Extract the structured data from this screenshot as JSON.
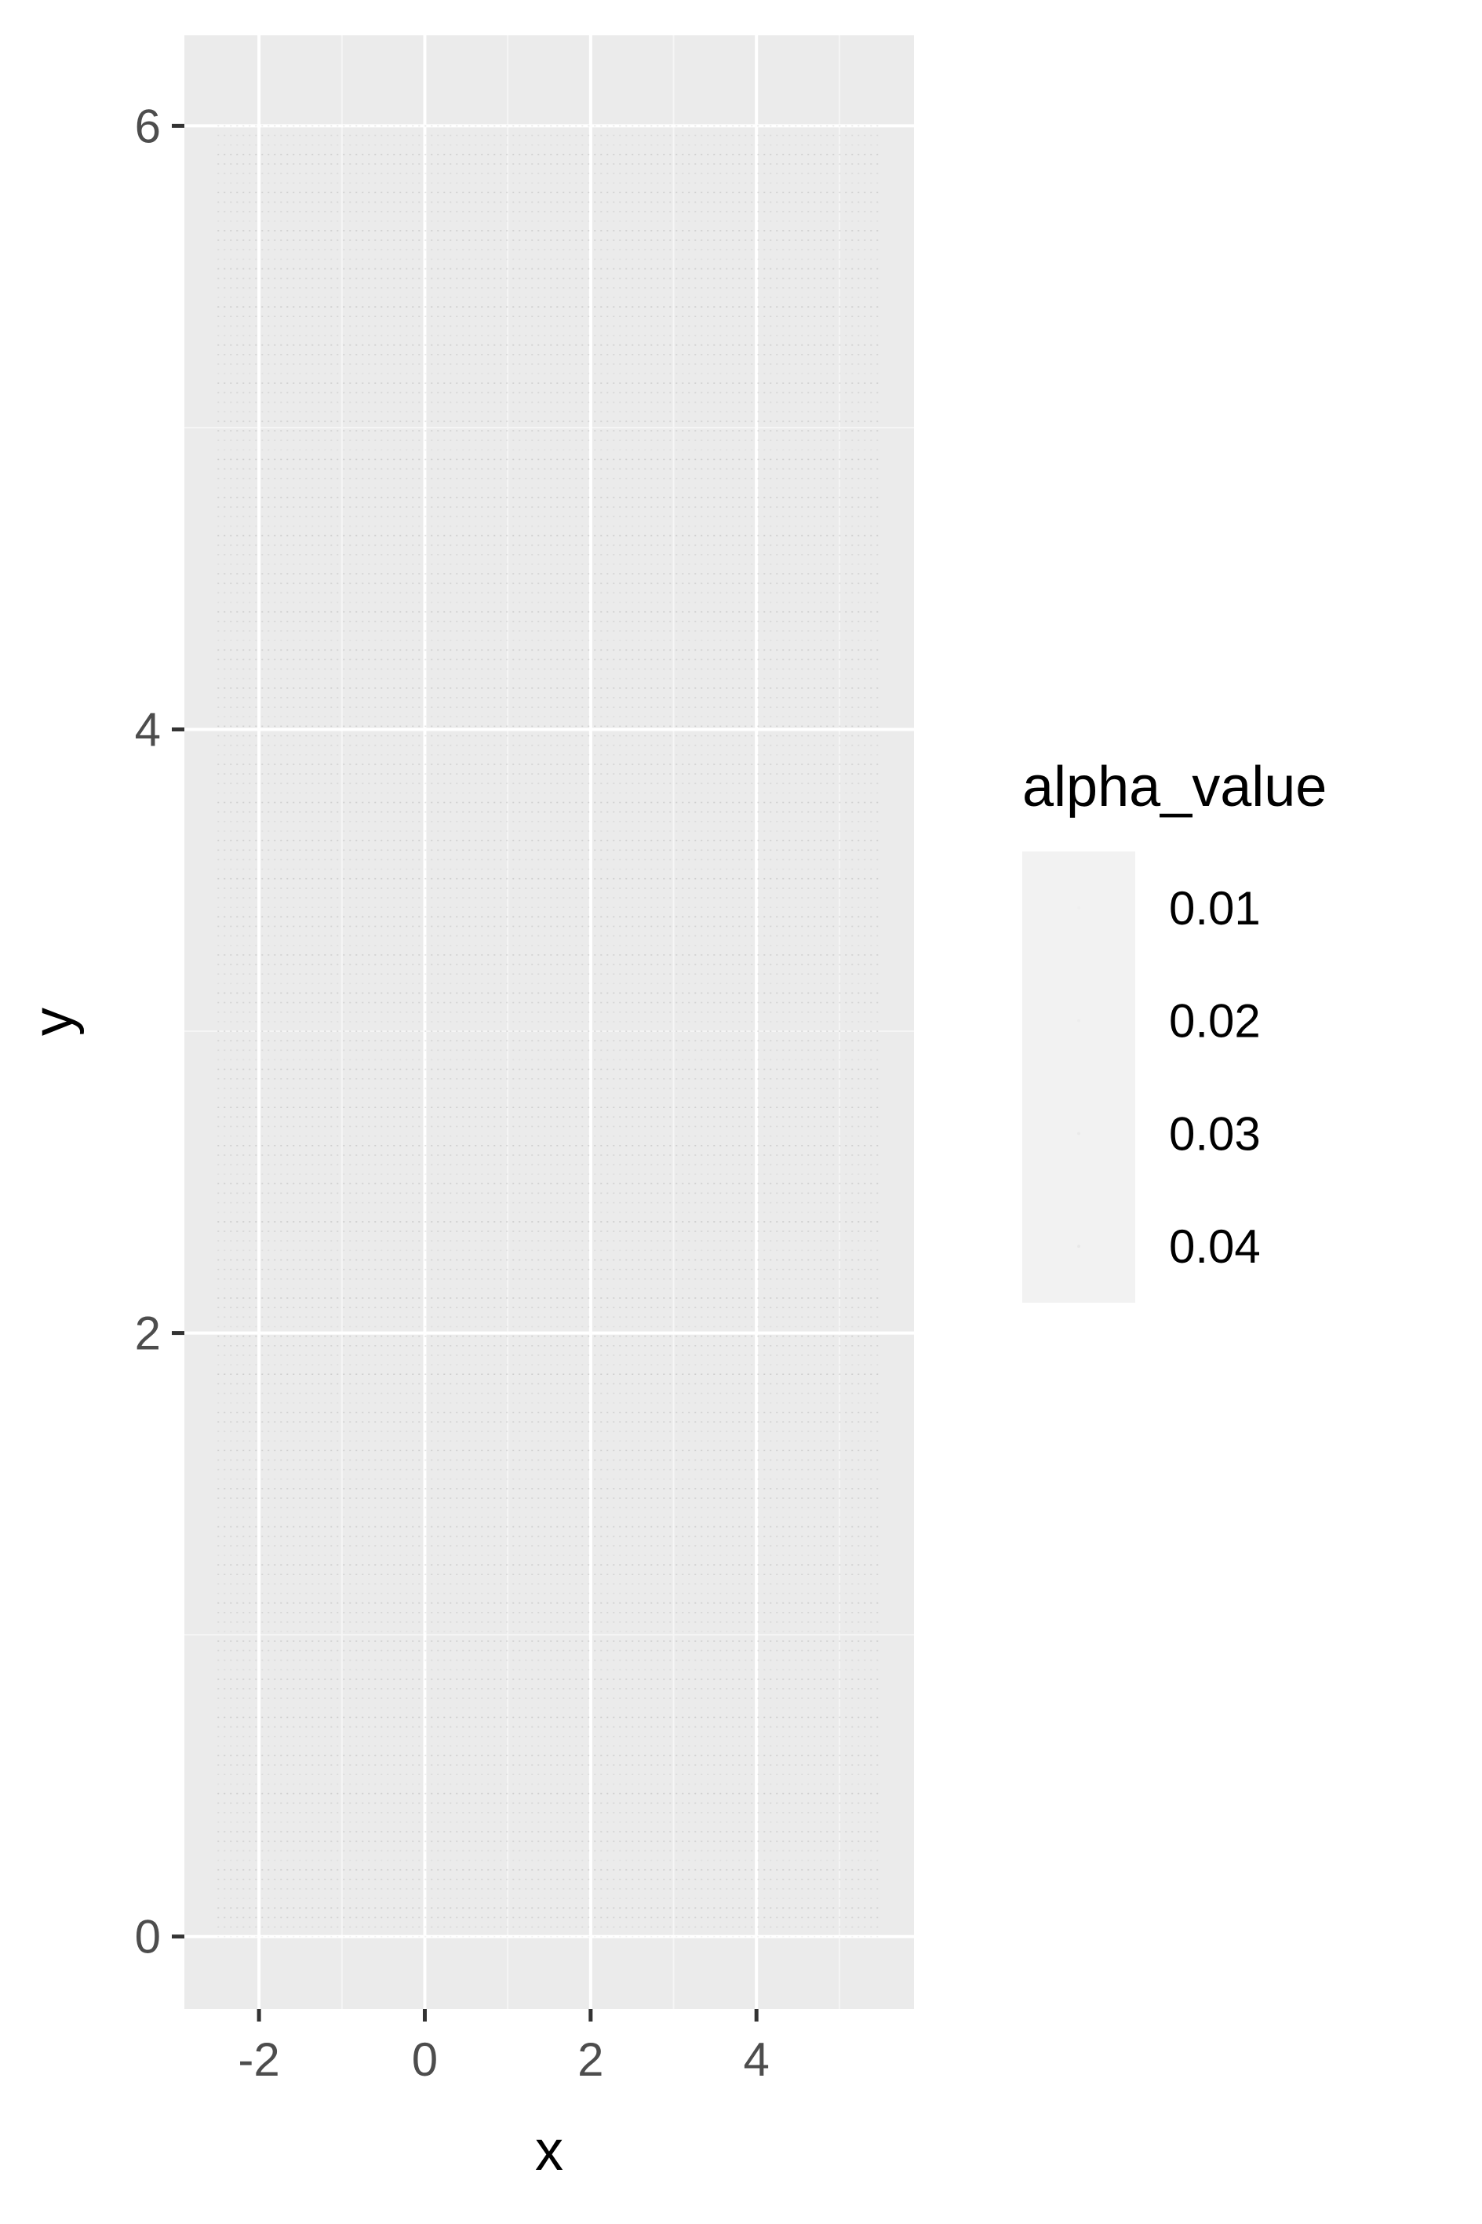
{
  "chart_data": {
    "type": "scatter",
    "title": "",
    "xlabel": "x",
    "ylabel": "y",
    "xlim": [
      -2.9,
      5.9
    ],
    "ylim": [
      -0.24,
      6.3
    ],
    "x_ticks": [
      -2,
      0,
      2,
      4
    ],
    "x_tick_labels": [
      "-2",
      "0",
      "2",
      "4"
    ],
    "y_ticks": [
      0,
      2,
      4,
      6
    ],
    "y_tick_labels": [
      "0",
      "2",
      "4",
      "6"
    ],
    "grid": true,
    "point_grid": {
      "x_range": [
        -2.5,
        5.5
      ],
      "y_range": [
        0,
        6
      ],
      "description": "dense regular grid of faint points with very low alpha"
    },
    "legend": {
      "title": "alpha_value",
      "placement": "right",
      "entries": [
        "0.01",
        "0.02",
        "0.03",
        "0.04"
      ],
      "values": [
        0.01,
        0.02,
        0.03,
        0.04
      ]
    },
    "colors": {
      "panel_background": "#ebebeb",
      "grid_major": "#ffffff",
      "grid_minor": "#f5f5f5",
      "point": "#000000",
      "legend_key_background": "#f2f2f2",
      "tick_mark": "#333333"
    }
  }
}
